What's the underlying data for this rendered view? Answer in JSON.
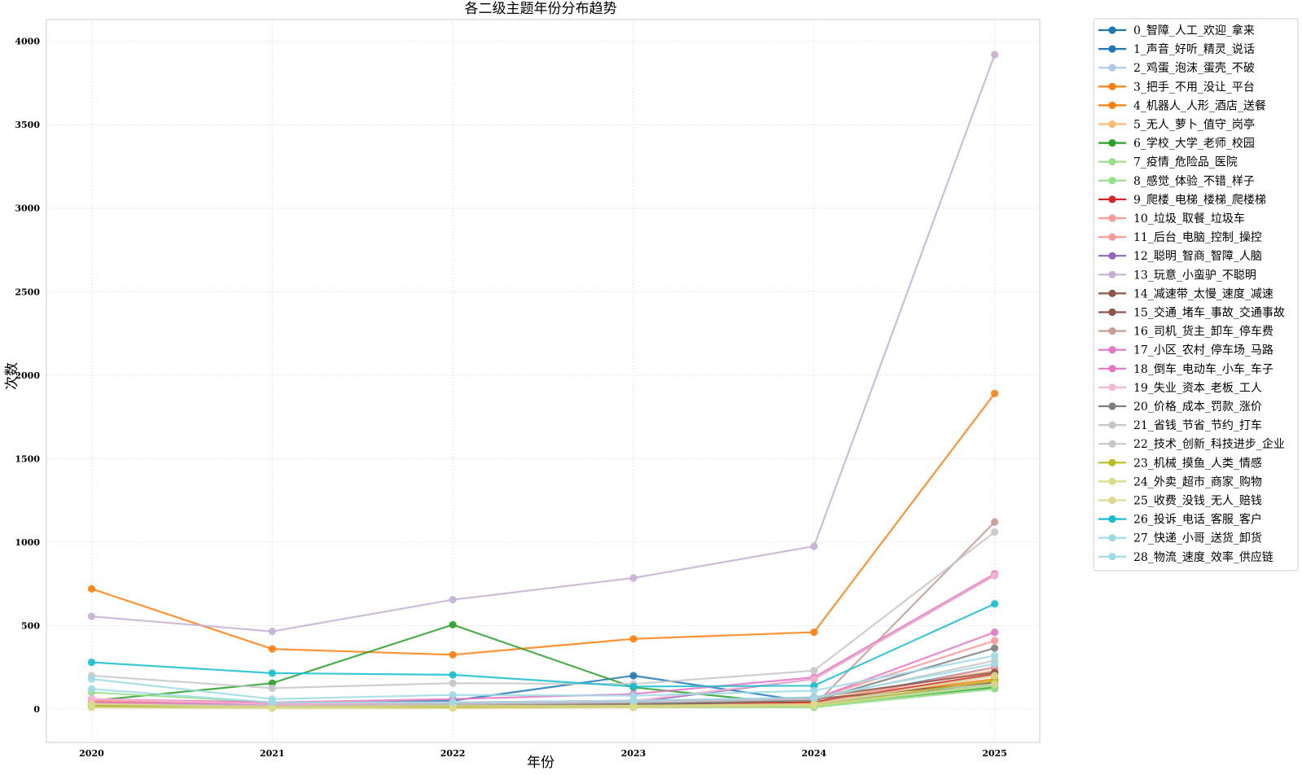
{
  "chart_data": {
    "type": "line",
    "title": "各二级主题年份分布趋势",
    "xlabel": "年份",
    "ylabel": "次数",
    "x": [
      2020,
      2021,
      2022,
      2023,
      2024,
      2025
    ],
    "xlim": [
      2019.75,
      2025.25
    ],
    "ylim": [
      -200,
      4130
    ],
    "yticks": [
      0,
      500,
      1000,
      1500,
      2000,
      2500,
      3000,
      3500,
      4000
    ],
    "grid": true,
    "legend_position": "outside-right",
    "series": [
      {
        "name": "0_智障_人工_欢迎_拿来",
        "color": "#1f77b4",
        "values": [
          30,
          20,
          20,
          40,
          30,
          150
        ]
      },
      {
        "name": "1_声音_好听_精灵_说话",
        "color": "#1f77b4",
        "values": [
          40,
          30,
          50,
          200,
          40,
          250
        ]
      },
      {
        "name": "2_鸡蛋_泡沫_蛋壳_不破",
        "color": "#aec7e8",
        "values": [
          20,
          10,
          10,
          15,
          20,
          200
        ]
      },
      {
        "name": "3_把手_不用_没让_平台",
        "color": "#ff7f0e",
        "values": [
          720,
          360,
          325,
          420,
          460,
          1890
        ]
      },
      {
        "name": "4_机器人_人形_酒店_送餐",
        "color": "#ff7f0e",
        "values": [
          50,
          30,
          20,
          30,
          40,
          180
        ]
      },
      {
        "name": "5_无人_萝卜_值守_岗亭",
        "color": "#ffbb78",
        "values": [
          60,
          20,
          10,
          20,
          50,
          230
        ]
      },
      {
        "name": "6_学校_大学_老师_校园",
        "color": "#2ca02c",
        "values": [
          50,
          155,
          505,
          130,
          20,
          130
        ]
      },
      {
        "name": "7_疫情_危险品_医院",
        "color": "#98df8a",
        "values": [
          100,
          40,
          20,
          10,
          10,
          120
        ]
      },
      {
        "name": "8_感觉_体验_不错_样子",
        "color": "#98df8a",
        "values": [
          40,
          20,
          10,
          10,
          15,
          140
        ]
      },
      {
        "name": "9_爬楼_电梯_楼梯_爬楼梯",
        "color": "#d62728",
        "values": [
          30,
          20,
          30,
          30,
          40,
          210
        ]
      },
      {
        "name": "10_垃圾_取餐_垃圾车",
        "color": "#ff9896",
        "values": [
          40,
          20,
          20,
          20,
          30,
          250
        ]
      },
      {
        "name": "11_后台_电脑_控制_操控",
        "color": "#ff9896",
        "values": [
          50,
          40,
          40,
          50,
          60,
          410
        ]
      },
      {
        "name": "12_聪明_智商_智障_人脑",
        "color": "#9467bd",
        "values": [
          20,
          30,
          30,
          40,
          180,
          800
        ]
      },
      {
        "name": "13_玩意_小蛮驴_不聪明",
        "color": "#c5b0d5",
        "values": [
          555,
          465,
          655,
          785,
          975,
          3920
        ]
      },
      {
        "name": "14_减速带_太慢_速度_减速",
        "color": "#8c564b",
        "values": [
          20,
          10,
          10,
          15,
          60,
          160
        ]
      },
      {
        "name": "15_交通_堵车_事故_交通事故",
        "color": "#8c564b",
        "values": [
          15,
          10,
          20,
          25,
          70,
          220
        ]
      },
      {
        "name": "16_司机_货主_卸车_停车费",
        "color": "#c49c94",
        "values": [
          10,
          10,
          10,
          10,
          20,
          1120
        ]
      },
      {
        "name": "17_小区_农村_停车场_马路",
        "color": "#e377c2",
        "values": [
          60,
          40,
          60,
          90,
          190,
          810
        ]
      },
      {
        "name": "18_倒车_电动车_小车_车子",
        "color": "#e377c2",
        "values": [
          40,
          30,
          40,
          50,
          60,
          460
        ]
      },
      {
        "name": "19_失业_资本_老板_工人",
        "color": "#f7b6d2",
        "values": [
          60,
          30,
          40,
          50,
          180,
          800
        ]
      },
      {
        "name": "20_价格_成本_罚款_涨价",
        "color": "#7f7f7f",
        "values": [
          20,
          10,
          20,
          30,
          50,
          365
        ]
      },
      {
        "name": "21_省钱_节省_节约_打车",
        "color": "#c7c7c7",
        "values": [
          30,
          20,
          30,
          40,
          60,
          290
        ]
      },
      {
        "name": "22_技术_创新_科技进步_企业",
        "color": "#c7c7c7",
        "values": [
          200,
          125,
          155,
          150,
          230,
          1060
        ]
      },
      {
        "name": "23_机械_摸鱼_人类_情感",
        "color": "#bcbd22",
        "values": [
          20,
          10,
          10,
          20,
          20,
          170
        ]
      },
      {
        "name": "24_外卖_超市_商家_购物",
        "color": "#dbdb8d",
        "values": [
          30,
          10,
          20,
          20,
          30,
          200
        ]
      },
      {
        "name": "25_收费_没钱_无人_赔钱",
        "color": "#dbdb8d",
        "values": [
          10,
          5,
          5,
          10,
          20,
          150
        ]
      },
      {
        "name": "26_投诉_电话_客服_客户",
        "color": "#17becf",
        "values": [
          280,
          215,
          205,
          135,
          140,
          630
        ]
      },
      {
        "name": "27_快递_小哥_送货_卸货",
        "color": "#9edae5",
        "values": [
          180,
          60,
          85,
          80,
          110,
          320
        ]
      },
      {
        "name": "28_物流_速度_效率_供应链",
        "color": "#9edae5",
        "values": [
          120,
          40,
          40,
          50,
          70,
          270
        ]
      }
    ]
  }
}
